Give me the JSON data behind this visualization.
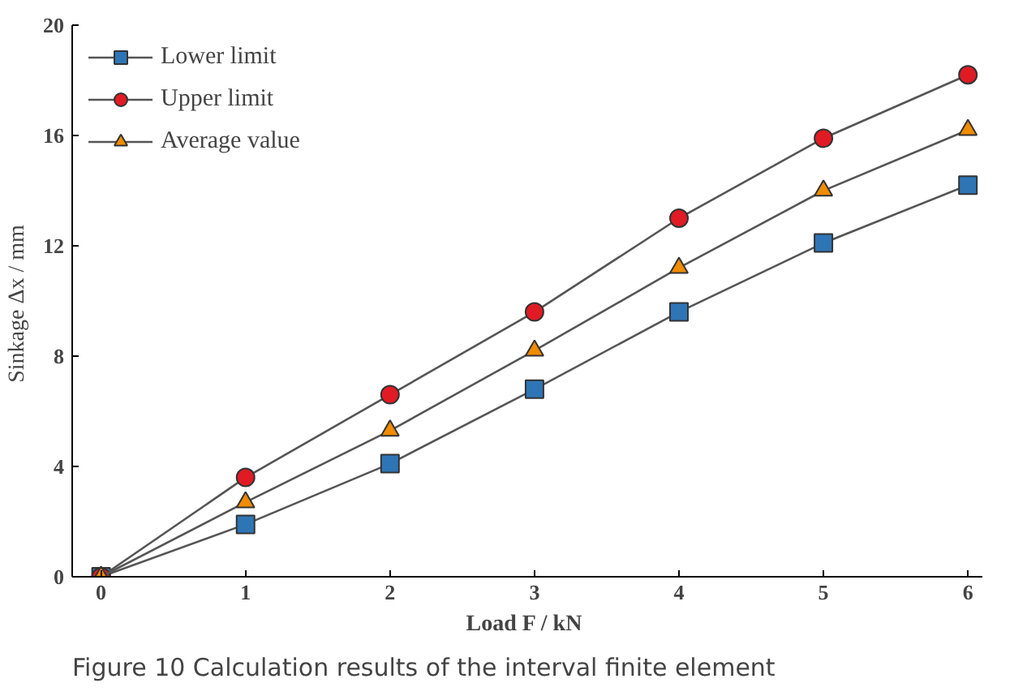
{
  "chart_data": {
    "type": "line",
    "title": "Figure 10  Calculation results of the interval finite element",
    "xlabel": "Load  F / kN",
    "ylabel": "Sinkage  Δx / mm",
    "x": [
      0,
      1,
      2,
      3,
      4,
      5,
      6
    ],
    "series": [
      {
        "name": "Lower limit",
        "color": "#2e75b6",
        "marker": "square",
        "values": [
          0,
          1.9,
          4.1,
          6.8,
          9.6,
          12.1,
          14.2
        ]
      },
      {
        "name": "Upper limit",
        "color": "#e01b24",
        "marker": "circle",
        "values": [
          0,
          3.6,
          6.6,
          9.6,
          13.0,
          15.9,
          18.2
        ]
      },
      {
        "name": "Average value",
        "color": "#f08c00",
        "marker": "triangle",
        "values": [
          0,
          2.7,
          5.3,
          8.2,
          11.2,
          14.0,
          16.2
        ]
      }
    ],
    "xlim": [
      -0.2,
      6.1
    ],
    "ylim": [
      0,
      20
    ],
    "xticks": [
      0,
      1,
      2,
      3,
      4,
      5,
      6
    ],
    "yticks": [
      0,
      4,
      8,
      12,
      16,
      20
    ],
    "grid": false,
    "legend": "top left",
    "line_style": "solid"
  }
}
